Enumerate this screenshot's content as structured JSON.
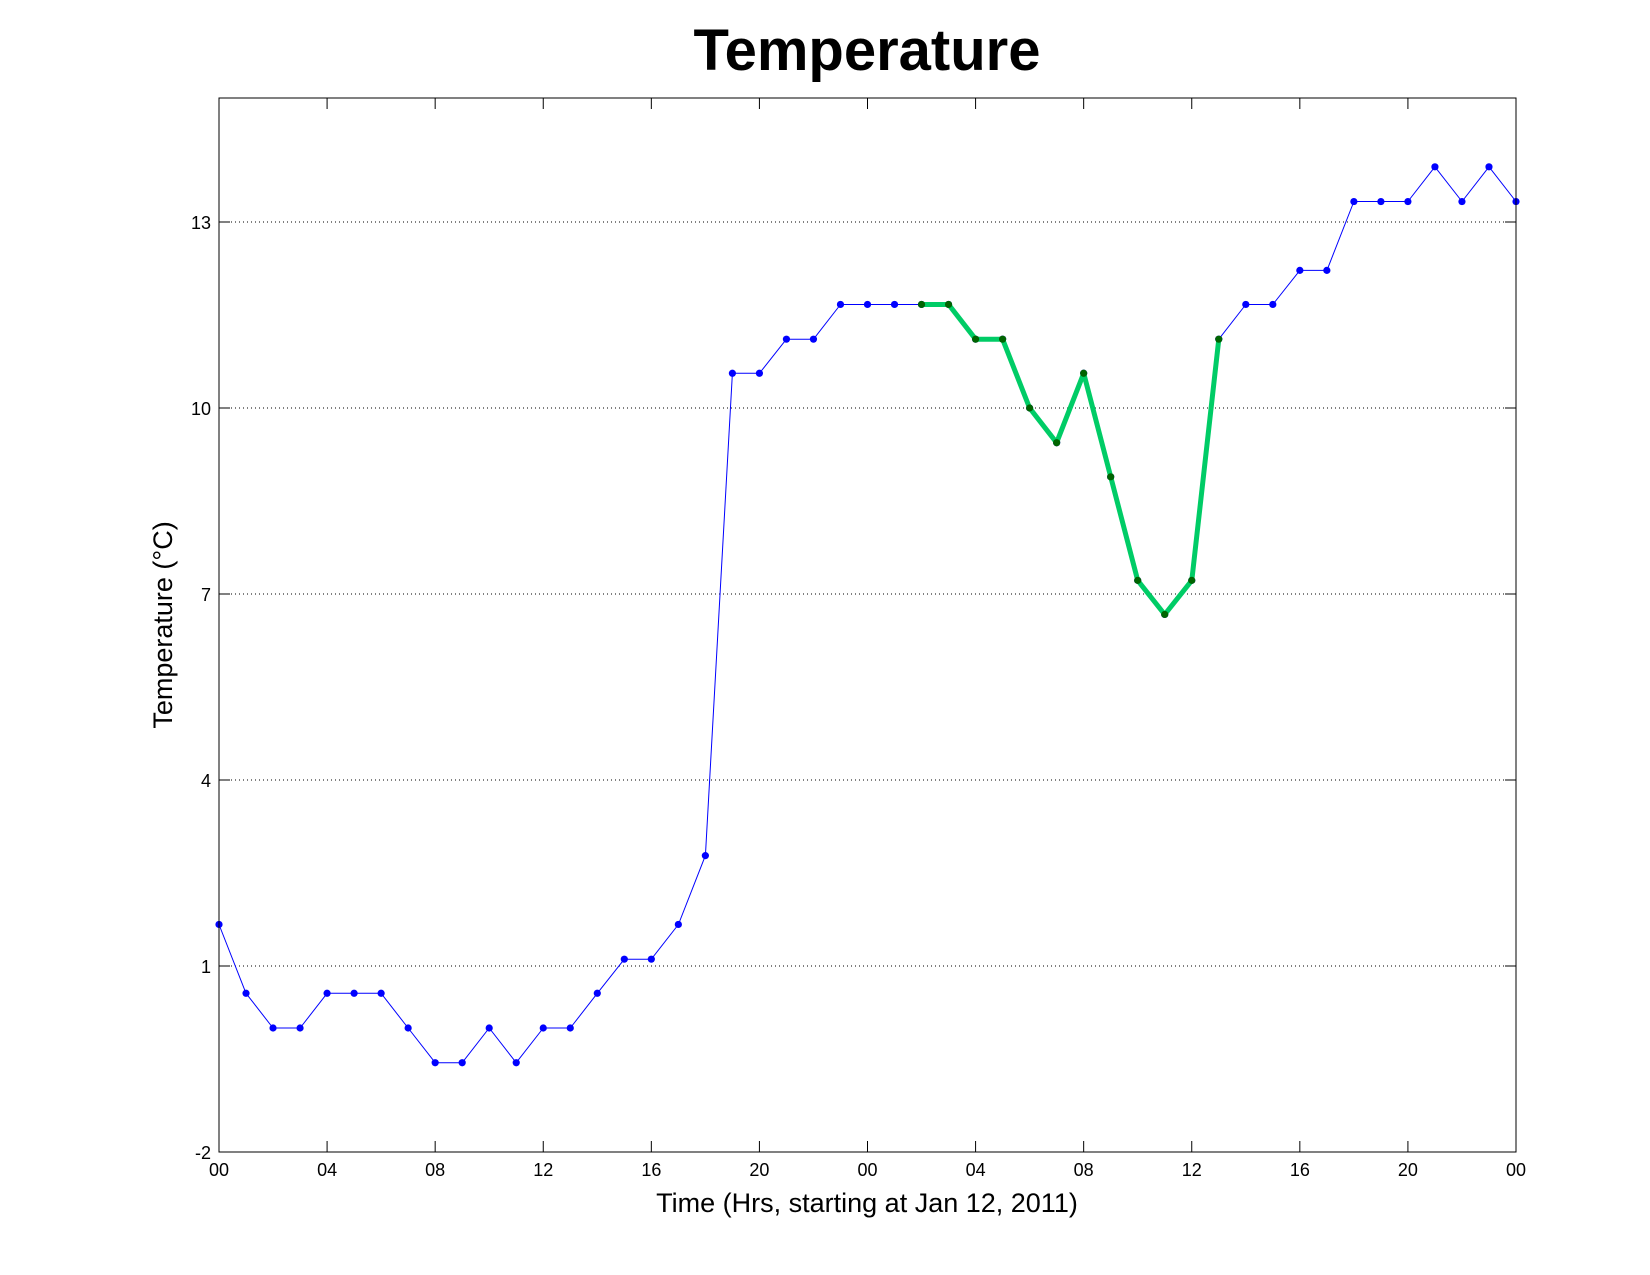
{
  "chart_data": {
    "type": "line",
    "title": "Temperature",
    "xlabel": "Time (Hrs, starting at Jan 12, 2011)",
    "ylabel": "Temperature (°C)",
    "xlim": [
      0,
      48
    ],
    "ylim": [
      -2,
      15
    ],
    "x_ticks": [
      0,
      4,
      8,
      12,
      16,
      20,
      24,
      28,
      32,
      36,
      40,
      44,
      48
    ],
    "x_tick_labels": [
      "00",
      "04",
      "08",
      "12",
      "16",
      "20",
      "00",
      "04",
      "08",
      "12",
      "16",
      "20",
      "00"
    ],
    "y_ticks": [
      -2,
      1,
      4,
      7,
      10,
      13
    ],
    "y_tick_labels": [
      "-2",
      "1",
      "4",
      "7",
      "10",
      "13"
    ],
    "grid": "horizontal dotted",
    "series": [
      {
        "color": "#0000ff",
        "marker_color": "#0000ff",
        "line_width": 1,
        "x": [
          0,
          1,
          2,
          3,
          4,
          5,
          6,
          7,
          8,
          9,
          10,
          11,
          12,
          13,
          14,
          15,
          16,
          17,
          18,
          19,
          20,
          21,
          22,
          23,
          24,
          25,
          26,
          27,
          28,
          29,
          30,
          31,
          32,
          33,
          34,
          35,
          36,
          37,
          38,
          39,
          40,
          41,
          42,
          43,
          44,
          45,
          46,
          47,
          48
        ],
        "y": [
          1.67,
          0.56,
          0,
          0,
          0.56,
          0.56,
          0.56,
          0,
          -0.56,
          -0.56,
          0,
          -0.56,
          0,
          0,
          0.56,
          1.11,
          1.11,
          1.67,
          2.78,
          10.56,
          10.56,
          11.11,
          11.11,
          11.67,
          11.67,
          11.67,
          11.67,
          11.67,
          11.11,
          11.11,
          10,
          9.44,
          10.56,
          8.89,
          7.22,
          6.67,
          7.22,
          11.11,
          11.67,
          11.67,
          12.22,
          12.22,
          13.33,
          13.33,
          13.33,
          13.89,
          13.33,
          13.89,
          13.33
        ]
      },
      {
        "color": "#00cc66",
        "marker_color": "#006400",
        "line_width": 5,
        "x": [
          26,
          27,
          28,
          29,
          30,
          31,
          32,
          33,
          34,
          35,
          36,
          37
        ],
        "y": [
          11.67,
          11.67,
          11.11,
          11.11,
          10,
          9.44,
          10.56,
          8.89,
          7.22,
          6.67,
          7.22,
          11.11
        ]
      }
    ]
  }
}
